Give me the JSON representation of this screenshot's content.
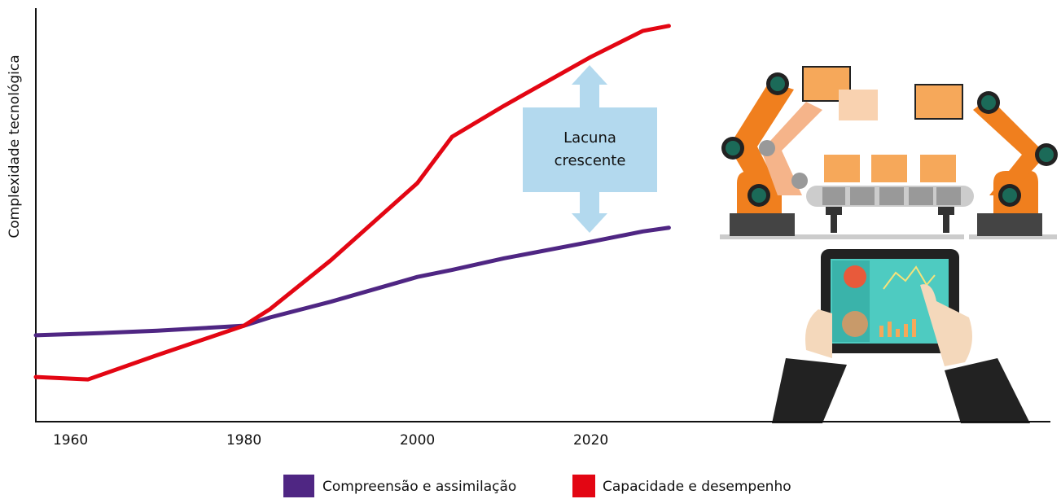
{
  "chart_data": {
    "type": "line",
    "y_label": "Complexidade tecnológica",
    "annotation": "Lacuna crescente",
    "x": [
      1956,
      1962,
      1970,
      1980,
      1983,
      1990,
      2000,
      2004,
      2010,
      2020,
      2026,
      2029
    ],
    "series": [
      {
        "name": "Compreensão e assimilação",
        "color": "#4f2683",
        "values": [
          20.9,
          21.3,
          22,
          23.2,
          25.2,
          29,
          35,
          36.7,
          39.5,
          43.5,
          46,
          46.9
        ]
      },
      {
        "name": "Capacidade e desempenho",
        "color": "#e30613",
        "values": [
          10.8,
          10.2,
          16.1,
          23.2,
          27.2,
          39,
          57.7,
          68.9,
          76.4,
          88.2,
          94.5,
          95.7
        ]
      }
    ],
    "xlim": [
      1956,
      2073
    ],
    "xticks": [
      1960,
      1980,
      2000,
      2020
    ],
    "ylim": [
      0,
      100
    ]
  }
}
